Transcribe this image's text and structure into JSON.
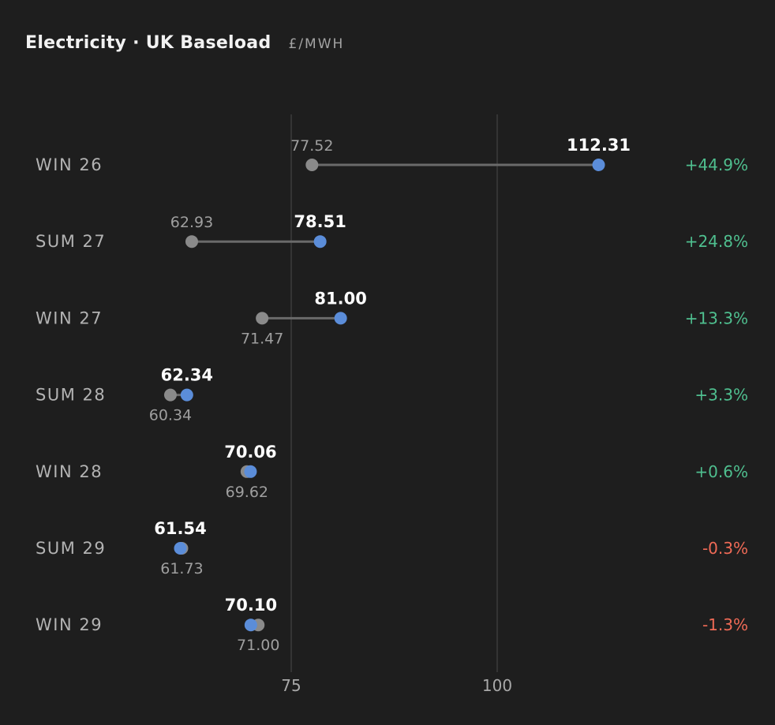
{
  "header": {
    "title": "Electricity · UK Baseload",
    "unit": "£/MWH"
  },
  "colors": {
    "background": "#1e1e1e",
    "current_dot": "#5b8dd9",
    "previous_dot": "#8a8a8a",
    "connector": "#6a6a6a",
    "gridline": "#3c3c3c",
    "positive": "#4fbf8f",
    "negative": "#ef6a56"
  },
  "chart_data": {
    "type": "dumbbell",
    "title": "Electricity · UK Baseload",
    "unit": "£/MWH",
    "x_ticks": [
      75,
      100
    ],
    "x_tick_labels": [
      "75",
      "100"
    ],
    "xlim": [
      58.3,
      117.7
    ],
    "grid": "vertical",
    "rows": [
      {
        "label": "WIN 26",
        "previous": 77.52,
        "current": 112.31,
        "previous_label": "77.52",
        "current_label": "112.31",
        "change": "+44.9%",
        "direction": "up"
      },
      {
        "label": "SUM 27",
        "previous": 62.93,
        "current": 78.51,
        "previous_label": "62.93",
        "current_label": "78.51",
        "change": "+24.8%",
        "direction": "up"
      },
      {
        "label": "WIN 27",
        "previous": 71.47,
        "current": 81.0,
        "previous_label": "71.47",
        "current_label": "81.00",
        "change": "+13.3%",
        "direction": "up"
      },
      {
        "label": "SUM 28",
        "previous": 60.34,
        "current": 62.34,
        "previous_label": "60.34",
        "current_label": "62.34",
        "change": "+3.3%",
        "direction": "up"
      },
      {
        "label": "WIN 28",
        "previous": 69.62,
        "current": 70.06,
        "previous_label": "69.62",
        "current_label": "70.06",
        "change": "+0.6%",
        "direction": "up"
      },
      {
        "label": "SUM 29",
        "previous": 61.73,
        "current": 61.54,
        "previous_label": "61.73",
        "current_label": "61.54",
        "change": "-0.3%",
        "direction": "down"
      },
      {
        "label": "WIN 29",
        "previous": 71.0,
        "current": 70.1,
        "previous_label": "71.00",
        "current_label": "70.10",
        "change": "-1.3%",
        "direction": "down"
      }
    ]
  }
}
